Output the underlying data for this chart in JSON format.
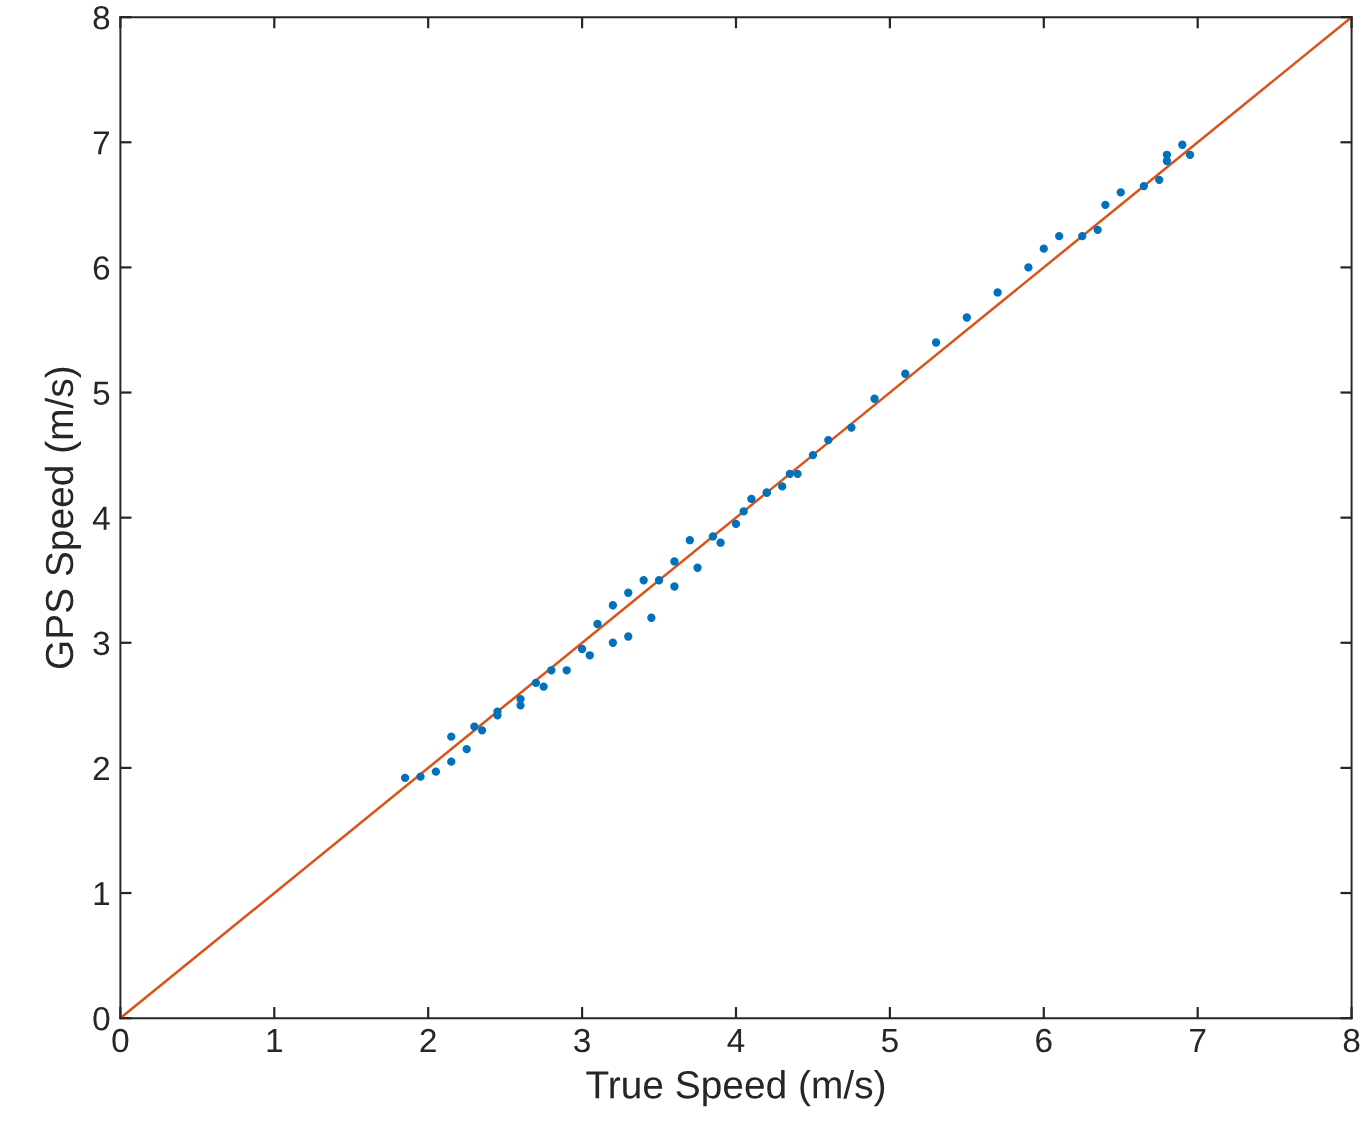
{
  "chart_data": {
    "type": "scatter",
    "xlabel": "True Speed (m/s)",
    "ylabel": "GPS Speed (m/s)",
    "xlim": [
      0,
      8
    ],
    "ylim": [
      0,
      8
    ],
    "xticks": [
      0,
      1,
      2,
      3,
      4,
      5,
      6,
      7,
      8
    ],
    "yticks": [
      0,
      1,
      2,
      3,
      4,
      5,
      6,
      7,
      8
    ],
    "grid": false,
    "marker": "circle",
    "series": [
      {
        "color": "#0072bd",
        "x": [
          1.85,
          1.95,
          2.05,
          2.15,
          2.25,
          2.35,
          2.45,
          2.6,
          2.75,
          2.9,
          3.05,
          3.2,
          3.3,
          3.45,
          3.6,
          3.75,
          3.9,
          4.05,
          4.2,
          4.35,
          2.15,
          2.3,
          2.45,
          2.6,
          2.7,
          2.8,
          3.0,
          3.1,
          3.2,
          3.3,
          3.4,
          3.5,
          3.6,
          3.7,
          3.85,
          4.0,
          4.1,
          4.2,
          4.3,
          4.4,
          4.5,
          4.6,
          4.75,
          4.9,
          5.1,
          5.3,
          5.5,
          5.7,
          5.9,
          6.0,
          6.1,
          6.25,
          6.35,
          6.4,
          6.5,
          6.65,
          6.75,
          6.8,
          6.9,
          6.95,
          6.8
        ],
        "values": [
          1.92,
          1.93,
          1.97,
          2.05,
          2.15,
          2.3,
          2.42,
          2.5,
          2.65,
          2.78,
          2.9,
          3.0,
          3.05,
          3.2,
          3.45,
          3.6,
          3.8,
          4.05,
          4.2,
          4.35,
          2.25,
          2.33,
          2.45,
          2.55,
          2.68,
          2.78,
          2.95,
          3.15,
          3.3,
          3.4,
          3.5,
          3.5,
          3.65,
          3.82,
          3.85,
          3.95,
          4.15,
          4.2,
          4.25,
          4.35,
          4.5,
          4.62,
          4.72,
          4.95,
          5.15,
          5.4,
          5.6,
          5.8,
          6.0,
          6.15,
          6.25,
          6.25,
          6.3,
          6.5,
          6.6,
          6.65,
          6.7,
          6.9,
          6.98,
          6.9,
          6.85
        ]
      },
      {
        "type": "line",
        "color": "#d95319",
        "x": [
          0,
          8
        ],
        "values": [
          0,
          8
        ],
        "marker": "none"
      }
    ]
  }
}
